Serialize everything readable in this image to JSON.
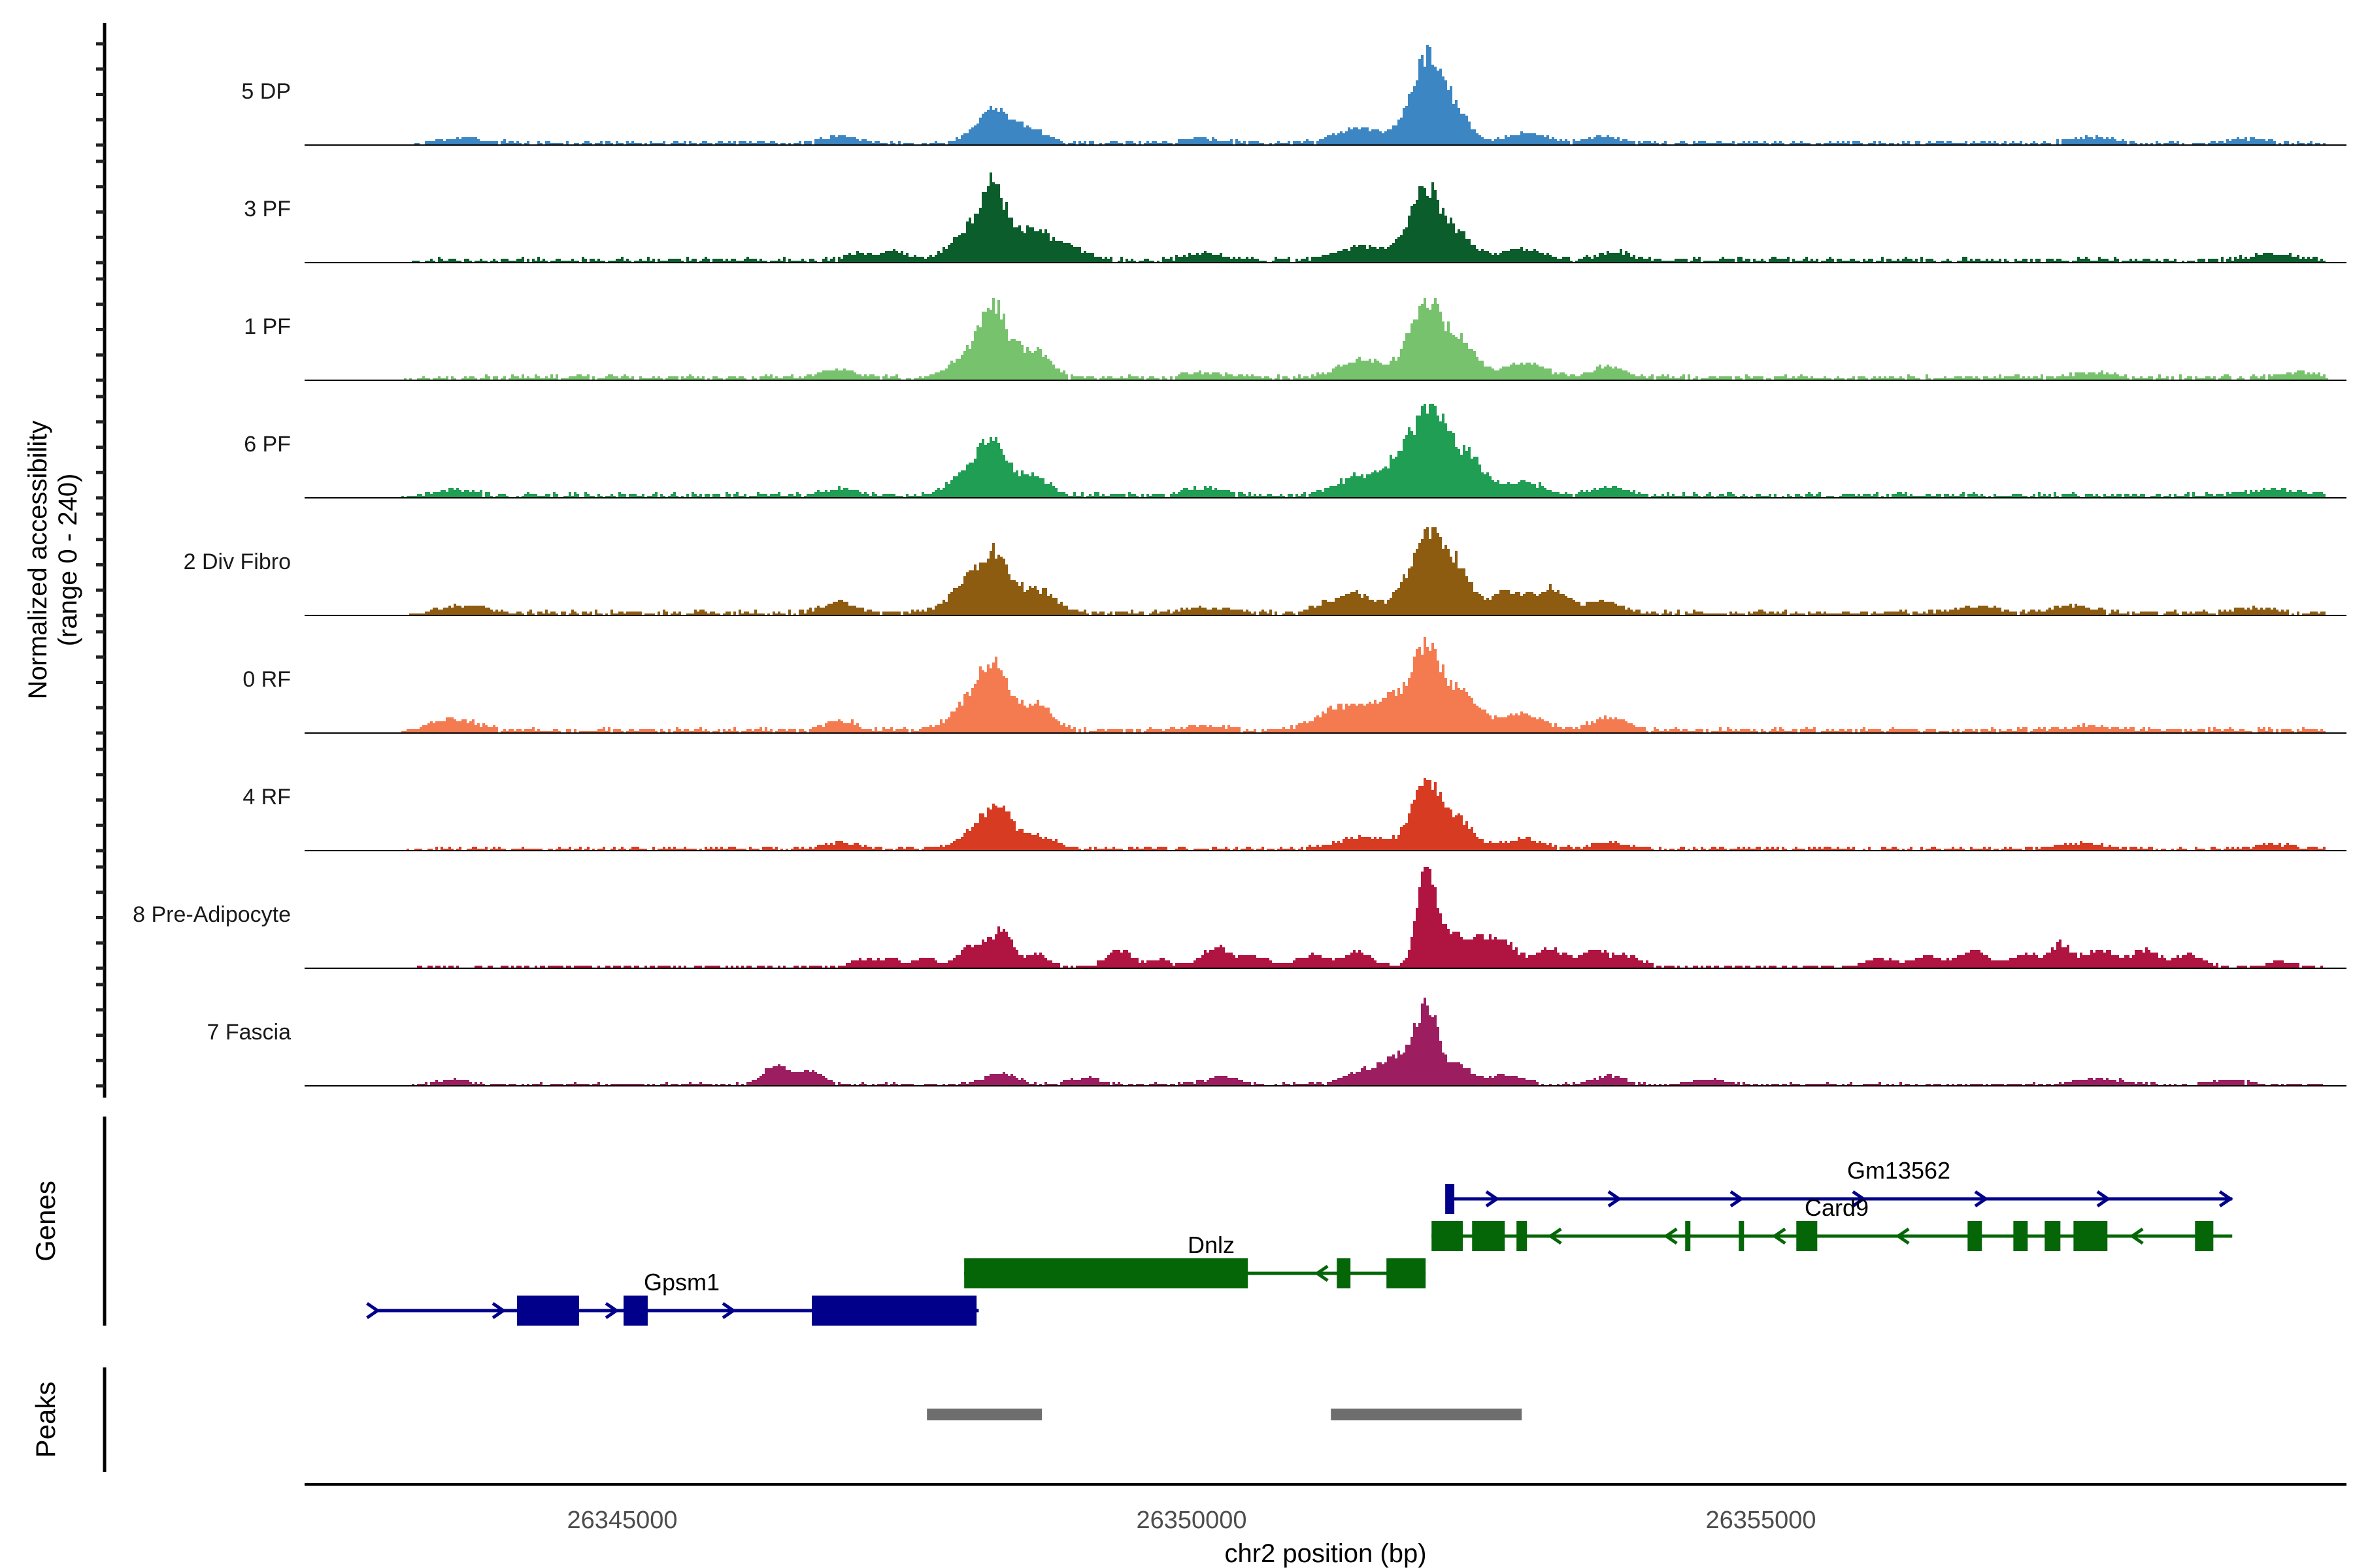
{
  "figure": {
    "y_axis_label_line1": "Normalized accessibility",
    "y_axis_label_line2": "(range 0 - 240)",
    "genes_section_label": "Genes",
    "peaks_section_label": "Peaks",
    "x_axis_label": "chr2 position (bp)"
  },
  "chart_data": {
    "type": "area",
    "subtype": "genome-browser-accessibility-tracks",
    "xlabel": "chr2 position (bp)",
    "ylabel": "Normalized accessibility (range 0 - 240)",
    "per_track_y_range": [
      0,
      240
    ],
    "x_domain_bp": [
      26342210,
      26360140
    ],
    "x_ticks_bp": [
      26345000,
      26350000,
      26355000
    ],
    "x_tick_labels": [
      "26345000",
      "26350000",
      "26355000"
    ],
    "tracks": [
      {
        "name": "5 DP",
        "color": "#3b86c3",
        "noise": 4,
        "peaks": [
          [
            26343600,
            6,
            200
          ],
          [
            26346900,
            10,
            140
          ],
          [
            26348250,
            54,
            150
          ],
          [
            26348600,
            17,
            130
          ],
          [
            26350100,
            6,
            180
          ],
          [
            26351500,
            22,
            220
          ],
          [
            26352050,
            128,
            130
          ],
          [
            26352320,
            46,
            110
          ],
          [
            26352900,
            14,
            180
          ],
          [
            26353600,
            9,
            140
          ],
          [
            26357900,
            8,
            180
          ],
          [
            26359300,
            6,
            150
          ]
        ]
      },
      {
        "name": "3 PF",
        "color": "#0b5d2c",
        "noise": 5,
        "peaks": [
          [
            26347100,
            9,
            120
          ],
          [
            26347400,
            11,
            120
          ],
          [
            26348020,
            38,
            150
          ],
          [
            26348250,
            100,
            110
          ],
          [
            26348580,
            45,
            140
          ],
          [
            26348900,
            22,
            140
          ],
          [
            26350100,
            11,
            160
          ],
          [
            26351500,
            20,
            220
          ],
          [
            26352050,
            104,
            140
          ],
          [
            26352350,
            30,
            120
          ],
          [
            26352900,
            17,
            180
          ],
          [
            26353700,
            12,
            140
          ],
          [
            26359500,
            8,
            200
          ]
        ]
      },
      {
        "name": "1 PF",
        "color": "#77c26d",
        "noise": 5,
        "peaks": [
          [
            26346900,
            12,
            140
          ],
          [
            26348020,
            30,
            150
          ],
          [
            26348250,
            98,
            120
          ],
          [
            26348600,
            42,
            140
          ],
          [
            26350100,
            8,
            160
          ],
          [
            26351500,
            25,
            220
          ],
          [
            26352050,
            114,
            140
          ],
          [
            26352370,
            48,
            120
          ],
          [
            26352900,
            22,
            180
          ],
          [
            26353650,
            16,
            140
          ],
          [
            26357900,
            7,
            180
          ],
          [
            26359700,
            8,
            150
          ]
        ]
      },
      {
        "name": "6 PF",
        "color": "#1f9e54",
        "noise": 5,
        "peaks": [
          [
            26343500,
            7,
            180
          ],
          [
            26346900,
            10,
            140
          ],
          [
            26348030,
            34,
            150
          ],
          [
            26348250,
            75,
            120
          ],
          [
            26348600,
            28,
            140
          ],
          [
            26350100,
            10,
            160
          ],
          [
            26351500,
            28,
            220
          ],
          [
            26351900,
            55,
            160
          ],
          [
            26352120,
            100,
            140
          ],
          [
            26352420,
            52,
            140
          ],
          [
            26352900,
            20,
            180
          ],
          [
            26353650,
            12,
            140
          ],
          [
            26359500,
            8,
            200
          ]
        ]
      },
      {
        "name": "2 Div Fibro",
        "color": "#8d5c10",
        "noise": 5,
        "peaks": [
          [
            26343600,
            10,
            200
          ],
          [
            26346900,
            17,
            140
          ],
          [
            26348030,
            44,
            160
          ],
          [
            26348280,
            78,
            130
          ],
          [
            26348650,
            33,
            140
          ],
          [
            26350100,
            8,
            160
          ],
          [
            26351400,
            28,
            220
          ],
          [
            26352050,
            112,
            150
          ],
          [
            26352320,
            54,
            130
          ],
          [
            26352750,
            30,
            150
          ],
          [
            26353150,
            33,
            150
          ],
          [
            26353600,
            17,
            140
          ],
          [
            26356900,
            8,
            180
          ],
          [
            26357700,
            10,
            180
          ],
          [
            26359300,
            7,
            160
          ]
        ]
      },
      {
        "name": "0 RF",
        "color": "#f47b50",
        "noise": 5,
        "peaks": [
          [
            26343500,
            16,
            200
          ],
          [
            26346900,
            14,
            140
          ],
          [
            26348020,
            38,
            150
          ],
          [
            26348250,
            95,
            120
          ],
          [
            26348620,
            40,
            140
          ],
          [
            26350100,
            7,
            160
          ],
          [
            26351300,
            34,
            200
          ],
          [
            26351700,
            42,
            140
          ],
          [
            26352050,
            122,
            140
          ],
          [
            26352400,
            50,
            130
          ],
          [
            26352900,
            24,
            180
          ],
          [
            26353650,
            20,
            140
          ],
          [
            26357900,
            6,
            180
          ]
        ]
      },
      {
        "name": "4 RF",
        "color": "#d73c22",
        "noise": 4,
        "peaks": [
          [
            26346900,
            9,
            140
          ],
          [
            26348100,
            24,
            160
          ],
          [
            26348300,
            55,
            120
          ],
          [
            26348650,
            18,
            140
          ],
          [
            26351500,
            18,
            220
          ],
          [
            26352050,
            111,
            120
          ],
          [
            26352350,
            40,
            120
          ],
          [
            26352900,
            14,
            180
          ],
          [
            26353650,
            10,
            140
          ],
          [
            26357800,
            8,
            180
          ],
          [
            26359500,
            6,
            150
          ]
        ]
      },
      {
        "name": "8 Pre-Adipocyte",
        "color": "#b01441",
        "noise": 3,
        "peaks": [
          [
            26347100,
            11,
            90
          ],
          [
            26347350,
            12,
            90
          ],
          [
            26347650,
            13,
            90
          ],
          [
            26348020,
            24,
            110
          ],
          [
            26348200,
            28,
            90
          ],
          [
            26348350,
            48,
            70
          ],
          [
            26348620,
            18,
            110
          ],
          [
            26349350,
            24,
            110
          ],
          [
            26349700,
            11,
            90
          ],
          [
            26350200,
            28,
            130
          ],
          [
            26350550,
            16,
            110
          ],
          [
            26351050,
            18,
            130
          ],
          [
            26351450,
            22,
            120
          ],
          [
            26352050,
            151,
            80
          ],
          [
            26352260,
            44,
            90
          ],
          [
            26352470,
            34,
            110
          ],
          [
            26352720,
            38,
            120
          ],
          [
            26353120,
            26,
            130
          ],
          [
            26353520,
            24,
            120
          ],
          [
            26353820,
            16,
            110
          ],
          [
            26356050,
            11,
            130
          ],
          [
            26356450,
            17,
            110
          ],
          [
            26356850,
            24,
            120
          ],
          [
            26357300,
            18,
            130
          ],
          [
            26357620,
            33,
            90
          ],
          [
            26357950,
            26,
            120
          ],
          [
            26358350,
            24,
            130
          ],
          [
            26358750,
            18,
            110
          ],
          [
            26359550,
            9,
            110
          ]
        ]
      },
      {
        "name": "7 Fascia",
        "color": "#9c1d60",
        "noise": 3,
        "peaks": [
          [
            26343500,
            7,
            140
          ],
          [
            26346350,
            28,
            110
          ],
          [
            26346650,
            18,
            110
          ],
          [
            26348300,
            16,
            140
          ],
          [
            26349050,
            9,
            140
          ],
          [
            26350250,
            11,
            140
          ],
          [
            26351550,
            22,
            180
          ],
          [
            26351850,
            38,
            130
          ],
          [
            26352060,
            110,
            90
          ],
          [
            26352330,
            28,
            120
          ],
          [
            26352750,
            14,
            140
          ],
          [
            26353650,
            13,
            130
          ],
          [
            26354550,
            7,
            140
          ],
          [
            26357950,
            9,
            180
          ],
          [
            26359100,
            6,
            140
          ]
        ]
      }
    ],
    "genes": [
      {
        "name": "Gpsm1",
        "strand": "+",
        "color": "#00008b",
        "row": 3,
        "span_bp": [
          26342840,
          26348130
        ],
        "exons_bp": [
          [
            26344075,
            26344620
          ],
          [
            26345011,
            26345223
          ],
          [
            26346664,
            26348111
          ]
        ],
        "arrows_bp": [
          26342850,
          26343955,
          26344948,
          26345975,
          26348095
        ],
        "label_center_bp": 26345522
      },
      {
        "name": "Dnlz",
        "strand": "-",
        "color": "#056608",
        "row": 2,
        "span_bp": [
          26348002,
          26352054
        ],
        "exons_bp": [
          [
            26348002,
            26350493
          ],
          [
            26351274,
            26351394
          ],
          [
            26351710,
            26352054
          ]
        ],
        "arrows_bp": [
          26351102
        ],
        "label_center_bp": 26350172
      },
      {
        "name": "Card9",
        "strand": "-",
        "color": "#056608",
        "row": 1,
        "span_bp": [
          26352106,
          26359137
        ],
        "exons_bp": [
          [
            26352106,
            26352381
          ],
          [
            26352462,
            26352749
          ],
          [
            26352852,
            26352944
          ],
          [
            26354333,
            26354379
          ],
          [
            26354804,
            26354850
          ],
          [
            26355309,
            26355493
          ],
          [
            26356813,
            26356939
          ],
          [
            26357215,
            26357341
          ],
          [
            26357490,
            26357628
          ],
          [
            26357743,
            26358041
          ],
          [
            26358810,
            26358971
          ]
        ],
        "arrows_bp": [
          26353151,
          26354167,
          26355119,
          26356204,
          26358259
        ],
        "label_center_bp": 26355665
      },
      {
        "name": "Gm13562",
        "strand": "+",
        "color": "#00008b",
        "row": 0,
        "span_bp": [
          26352266,
          26359137
        ],
        "exons_bp": [
          [
            26352226,
            26352306
          ]
        ],
        "arrows_bp": [
          26352679,
          26353752,
          26354825,
          26355898,
          26356972,
          26358045,
          26359120
        ],
        "label_center_bp": 26356210
      }
    ],
    "peak_calls_bp": [
      [
        26347675,
        26348685
      ],
      [
        26351222,
        26352898
      ]
    ],
    "peak_color": "#6e6e6e",
    "axis_text_color": "#4d4d4d"
  }
}
